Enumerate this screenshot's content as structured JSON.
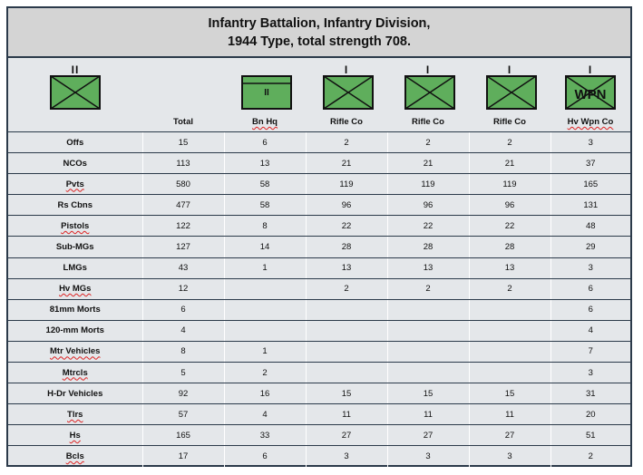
{
  "title": {
    "line1": "Infantry Battalion, Infantry Division,",
    "line2": "1944 Type, total strength 708."
  },
  "units": [
    {
      "echelon": "II",
      "symbol": "infantry-x",
      "label": "Total"
    },
    {
      "echelon": "",
      "symbol": "hq",
      "inner": "II",
      "label": "Bn Hq"
    },
    {
      "echelon": "I",
      "symbol": "infantry-x",
      "label": "Rifle Co"
    },
    {
      "echelon": "I",
      "symbol": "infantry-x",
      "label": "Rifle Co"
    },
    {
      "echelon": "I",
      "symbol": "infantry-x",
      "label": "Rifle Co"
    },
    {
      "echelon": "I",
      "symbol": "infantry-x-wpn",
      "inner": "WPN",
      "label": "Hv Wpn Co"
    }
  ],
  "colors": {
    "symbol_fill": "#5fae5c",
    "frame": "#2b3a4a",
    "title_bg": "#d4d4d4",
    "body_bg": "#e4e7ea"
  },
  "rows": [
    {
      "label": "Offs",
      "total": "15",
      "hq": "6",
      "rc1": "2",
      "rc2": "2",
      "rc3": "2",
      "hw": "3"
    },
    {
      "label": "NCOs",
      "total": "113",
      "hq": "13",
      "rc1": "21",
      "rc2": "21",
      "rc3": "21",
      "hw": "37"
    },
    {
      "label": "Pvts",
      "total": "580",
      "hq": "58",
      "rc1": "119",
      "rc2": "119",
      "rc3": "119",
      "hw": "165"
    },
    {
      "label": "Rs Cbns",
      "total": "477",
      "hq": "58",
      "rc1": "96",
      "rc2": "96",
      "rc3": "96",
      "hw": "131"
    },
    {
      "label": "Pistols",
      "total": "122",
      "hq": "8",
      "rc1": "22",
      "rc2": "22",
      "rc3": "22",
      "hw": "48"
    },
    {
      "label": "Sub-MGs",
      "total": "127",
      "hq": "14",
      "rc1": "28",
      "rc2": "28",
      "rc3": "28",
      "hw": "29"
    },
    {
      "label": "LMGs",
      "total": "43",
      "hq": "1",
      "rc1": "13",
      "rc2": "13",
      "rc3": "13",
      "hw": "3"
    },
    {
      "label": "Hv MGs",
      "total": "12",
      "hq": "",
      "rc1": "2",
      "rc2": "2",
      "rc3": "2",
      "hw": "6"
    },
    {
      "label": "81mm Morts",
      "total": "6",
      "hq": "",
      "rc1": "",
      "rc2": "",
      "rc3": "",
      "hw": "6"
    },
    {
      "label": "120-mm Morts",
      "total": "4",
      "hq": "",
      "rc1": "",
      "rc2": "",
      "rc3": "",
      "hw": "4"
    },
    {
      "label": "Mtr Vehicles",
      "total": "8",
      "hq": "1",
      "rc1": "",
      "rc2": "",
      "rc3": "",
      "hw": "7"
    },
    {
      "label": "Mtrcls",
      "total": "5",
      "hq": "2",
      "rc1": "",
      "rc2": "",
      "rc3": "",
      "hw": "3"
    },
    {
      "label": "H-Dr Vehicles",
      "total": "92",
      "hq": "16",
      "rc1": "15",
      "rc2": "15",
      "rc3": "15",
      "hw": "31"
    },
    {
      "label": "Tlrs",
      "total": "57",
      "hq": "4",
      "rc1": "11",
      "rc2": "11",
      "rc3": "11",
      "hw": "20"
    },
    {
      "label": "Hs",
      "total": "165",
      "hq": "33",
      "rc1": "27",
      "rc2": "27",
      "rc3": "27",
      "hw": "51"
    },
    {
      "label": "Bcls",
      "total": "17",
      "hq": "6",
      "rc1": "3",
      "rc2": "3",
      "rc3": "3",
      "hw": "2"
    }
  ]
}
